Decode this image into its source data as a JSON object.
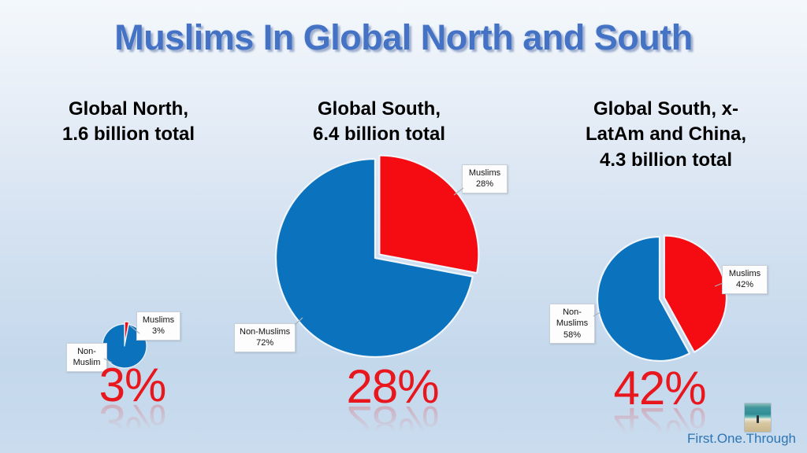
{
  "slide": {
    "title": "Muslims In Global North and South",
    "credit": "First.One.Through"
  },
  "colors": {
    "slice_muslims_red": "#F50C13",
    "slice_non_muslims_blue": "#0B72BE",
    "big_percent_red": "#E8171E",
    "title_blue": "#4472C4",
    "credit_blue": "#2E75B5"
  },
  "chart_data": [
    {
      "type": "pie",
      "title": "Global North, 1.6 billion total",
      "title_display": "Global North,\n1.6 billion total",
      "total": "1.6 billion",
      "labels": [
        "Muslims",
        "Non-Muslim"
      ],
      "values": [
        3,
        97
      ],
      "colors": [
        "#F50C13",
        "#0B72BE"
      ],
      "callouts": [
        "Muslims\n3%",
        "Non-\nMuslim"
      ],
      "highlight": "3%",
      "legend": "callout-labels"
    },
    {
      "type": "pie",
      "title": "Global South, 6.4 billion total",
      "title_display": "Global South,\n6.4 billion total",
      "total": "6.4 billion",
      "labels": [
        "Muslims",
        "Non-Muslims"
      ],
      "values": [
        28,
        72
      ],
      "colors": [
        "#F50C13",
        "#0B72BE"
      ],
      "callouts": [
        "Muslims\n28%",
        "Non-Muslims\n72%"
      ],
      "highlight": "28%",
      "legend": "callout-labels"
    },
    {
      "type": "pie",
      "title": "Global South, x-LatAm and China, 4.3 billion total",
      "title_display": "Global South, x-\nLatAm and China,\n4.3 billion total",
      "total": "4.3 billion",
      "labels": [
        "Muslims",
        "Non-Muslims"
      ],
      "values": [
        42,
        58
      ],
      "colors": [
        "#F50C13",
        "#0B72BE"
      ],
      "callouts": [
        "Muslims\n42%",
        "Non-\nMuslims\n58%"
      ],
      "highlight": "42%",
      "legend": "callout-labels"
    }
  ]
}
